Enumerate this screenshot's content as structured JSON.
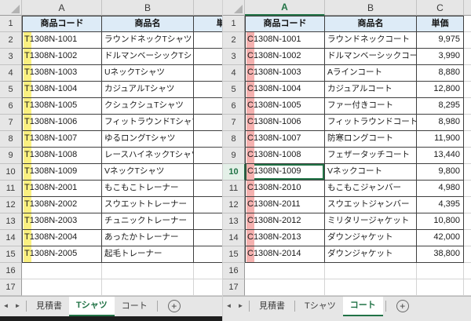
{
  "colors": {
    "excel_green": "#217346",
    "header_row_fill": "#DDEBF7",
    "yellow_highlight": "#FAF080",
    "pink_highlight": "#F5B1AF"
  },
  "icons": {
    "tab_scroll_left": "◄",
    "tab_scroll_right": "►",
    "add_sheet": "+"
  },
  "left_sheet": {
    "column_letters": [
      "A",
      "B",
      ""
    ],
    "headers": [
      "商品コード",
      "商品名",
      "単価"
    ],
    "rows": [
      {
        "row": "2",
        "code": "T1308N-1001",
        "name": "ラウンドネックTシャツ"
      },
      {
        "row": "3",
        "code": "T1308N-1002",
        "name": "ドルマンベーシックTシャツ"
      },
      {
        "row": "4",
        "code": "T1308N-1003",
        "name": "UネックTシャツ"
      },
      {
        "row": "5",
        "code": "T1308N-1004",
        "name": "カジュアルTシャツ"
      },
      {
        "row": "6",
        "code": "T1308N-1005",
        "name": "クシュクシュTシャツ"
      },
      {
        "row": "7",
        "code": "T1308N-1006",
        "name": "フィットラウンドTシャツ"
      },
      {
        "row": "8",
        "code": "T1308N-1007",
        "name": "ゆるロングTシャツ"
      },
      {
        "row": "9",
        "code": "T1308N-1008",
        "name": "レースハイネックTシャツ"
      },
      {
        "row": "10",
        "code": "T1308N-1009",
        "name": "VネックTシャツ"
      },
      {
        "row": "11",
        "code": "T1308N-2001",
        "name": "もこもこトレーナー"
      },
      {
        "row": "12",
        "code": "T1308N-2002",
        "name": "スウエットトレーナー"
      },
      {
        "row": "13",
        "code": "T1308N-2003",
        "name": "チュニックトレーナー"
      },
      {
        "row": "14",
        "code": "T1308N-2004",
        "name": "あったかトレーナー"
      },
      {
        "row": "15",
        "code": "T1308N-2005",
        "name": "起毛トレーナー"
      }
    ],
    "visible_row_count": 17,
    "tabs": [
      {
        "label": "見積書",
        "active": false
      },
      {
        "label": "Tシャツ",
        "active": true
      },
      {
        "label": "コート",
        "active": false
      }
    ]
  },
  "right_sheet": {
    "column_letters": [
      "A",
      "B",
      "C",
      ""
    ],
    "headers": [
      "商品コード",
      "商品名",
      "単価"
    ],
    "rows": [
      {
        "row": "2",
        "code": "C1308N-1001",
        "name": "ラウンドネックコート",
        "price": "9,975"
      },
      {
        "row": "3",
        "code": "C1308N-1002",
        "name": "ドルマンベーシックコート",
        "price": "3,990"
      },
      {
        "row": "4",
        "code": "C1308N-1003",
        "name": "Aラインコート",
        "price": "8,880"
      },
      {
        "row": "5",
        "code": "C1308N-1004",
        "name": "カジュアルコート",
        "price": "12,800"
      },
      {
        "row": "6",
        "code": "C1308N-1005",
        "name": "ファー付きコート",
        "price": "8,295"
      },
      {
        "row": "7",
        "code": "C1308N-1006",
        "name": "フィットラウンドコート",
        "price": "8,980"
      },
      {
        "row": "8",
        "code": "C1308N-1007",
        "name": "防寒ロングコート",
        "price": "11,900"
      },
      {
        "row": "9",
        "code": "C1308N-1008",
        "name": "フェザータッチコート",
        "price": "13,440"
      },
      {
        "row": "10",
        "code": "C1308N-1009",
        "name": "Vネックコート",
        "price": "9,800"
      },
      {
        "row": "11",
        "code": "C1308N-2010",
        "name": "もこもこジャンバー",
        "price": "4,980"
      },
      {
        "row": "12",
        "code": "C1308N-2011",
        "name": "スウエットジャンバー",
        "price": "4,395"
      },
      {
        "row": "13",
        "code": "C1308N-2012",
        "name": "ミリタリージャケット",
        "price": "10,800"
      },
      {
        "row": "14",
        "code": "C1308N-2013",
        "name": "ダウンジャケット",
        "price": "42,000"
      },
      {
        "row": "15",
        "code": "C1308N-2014",
        "name": "ダウンジャケット",
        "price": "38,800"
      }
    ],
    "visible_row_count": 17,
    "selection": {
      "row": "10",
      "column": "A"
    },
    "tabs": [
      {
        "label": "見積書",
        "active": false
      },
      {
        "label": "Tシャツ",
        "active": false
      },
      {
        "label": "コート",
        "active": true
      }
    ]
  }
}
